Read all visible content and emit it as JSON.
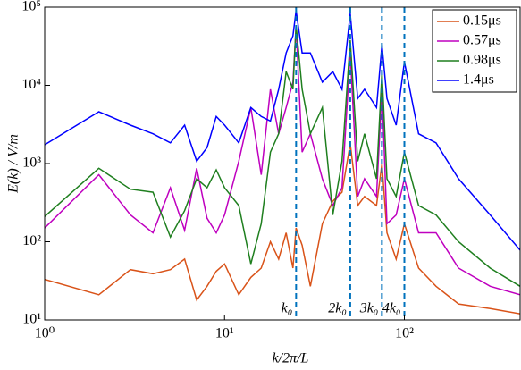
{
  "chart_data": {
    "type": "line",
    "xlabel": "k/2π/L",
    "ylabel": "E(k) / V/m",
    "x": [
      1,
      2,
      3,
      4,
      5,
      6,
      7,
      8,
      9,
      10,
      12,
      14,
      16,
      18,
      20,
      22,
      24,
      25,
      27,
      30,
      35,
      40,
      45,
      50,
      55,
      60,
      70,
      75,
      80,
      90,
      100,
      120,
      150,
      200,
      300,
      440
    ],
    "series": [
      {
        "name": "0.15μs",
        "color": "#d95319",
        "values": [
          33,
          21,
          44,
          39,
          44,
          60,
          18,
          27,
          42,
          52,
          21,
          35,
          46,
          100,
          60,
          130,
          46,
          150,
          90,
          27,
          170,
          330,
          430,
          1800,
          290,
          380,
          290,
          1000,
          130,
          60,
          170,
          46,
          27,
          16,
          14,
          12
        ]
      },
      {
        "name": "0.57μs",
        "color": "#bf00bf",
        "values": [
          150,
          720,
          220,
          130,
          490,
          140,
          870,
          200,
          130,
          220,
          1070,
          5200,
          720,
          8900,
          2400,
          5200,
          11000,
          56000,
          1400,
          2400,
          640,
          290,
          490,
          25700,
          380,
          640,
          380,
          8900,
          170,
          220,
          640,
          130,
          130,
          46,
          27,
          21
        ]
      },
      {
        "name": "0.98μs",
        "color": "#1f7f1f",
        "values": [
          210,
          870,
          470,
          430,
          115,
          250,
          640,
          490,
          830,
          490,
          290,
          52,
          170,
          1400,
          2400,
          15000,
          8900,
          59000,
          8900,
          2400,
          5200,
          220,
          1070,
          38000,
          1070,
          2400,
          640,
          15000,
          640,
          380,
          1400,
          290,
          220,
          100,
          46,
          27
        ]
      },
      {
        "name": "1.4μs",
        "color": "#0000ff",
        "values": [
          1740,
          4600,
          3100,
          2400,
          1840,
          3100,
          1070,
          1600,
          4000,
          3100,
          1840,
          5200,
          4000,
          3500,
          8900,
          26000,
          43000,
          90000,
          26000,
          26000,
          11000,
          15000,
          8900,
          83000,
          6800,
          8900,
          5200,
          33000,
          6800,
          3100,
          20000,
          2400,
          1840,
          640,
          220,
          78
        ]
      }
    ],
    "vlines": [
      {
        "x": 25,
        "label": "k₀"
      },
      {
        "x": 50,
        "label": "2k₀"
      },
      {
        "x": 75,
        "label": "3k₀"
      },
      {
        "x": 100,
        "label": "4k₀"
      }
    ],
    "vline_color": "#0072bd",
    "xlim": [
      1,
      440
    ],
    "ylim": [
      10,
      100000
    ],
    "xticks": [
      {
        "value": 1,
        "label": "10⁰"
      },
      {
        "value": 10,
        "label": "10¹"
      },
      {
        "value": 100,
        "label": "10²"
      }
    ],
    "yticks": [
      {
        "value": 10,
        "label": "10¹"
      },
      {
        "value": 100,
        "label": "10²"
      },
      {
        "value": 1000,
        "label": "10³"
      },
      {
        "value": 10000,
        "label": "10⁴"
      },
      {
        "value": 100000,
        "label": "10⁵"
      }
    ],
    "xscale": "log",
    "yscale": "log",
    "legend": "northeast"
  }
}
